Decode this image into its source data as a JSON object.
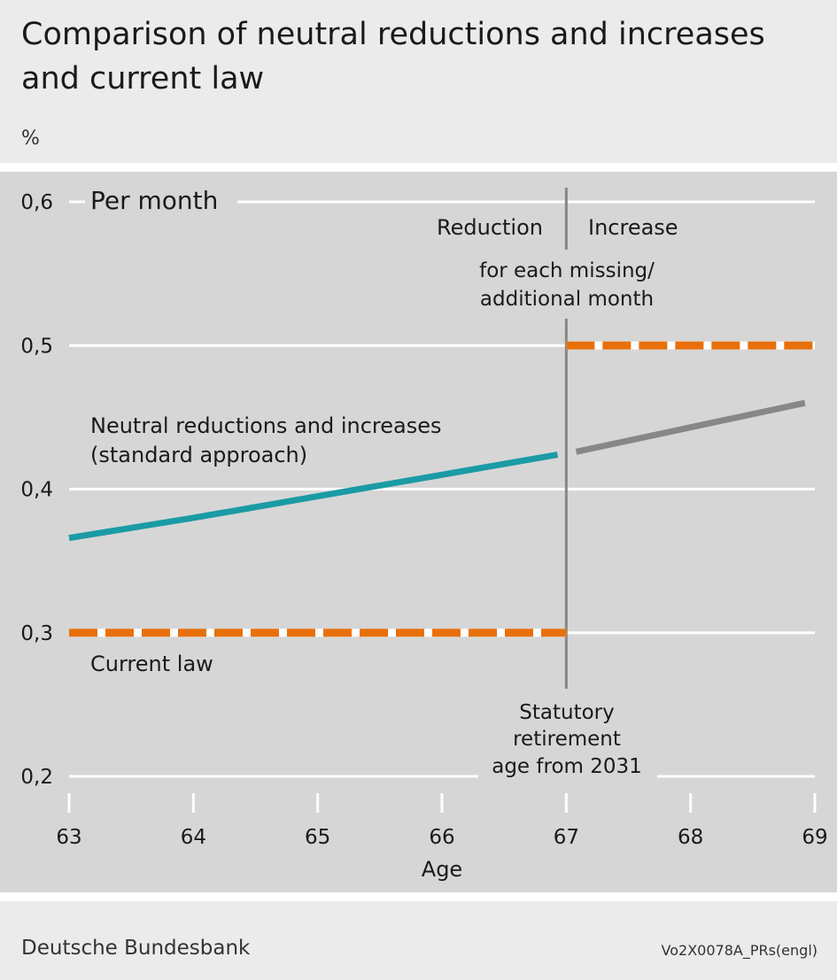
{
  "header": {
    "title": "Comparison of neutral reductions and increases and current law",
    "unit": "%"
  },
  "footer": {
    "source": "Deutsche Bundesbank",
    "code": "Vo2X0078A_PRs(engl)"
  },
  "colors": {
    "neutral_before": "#1a9ba6",
    "neutral_after": "#878787",
    "current_law": "#e8700c",
    "plot_bg": "#d6d6d6",
    "divider": "#878787"
  },
  "chart_data": {
    "type": "line",
    "x_ticks": [
      63,
      64,
      65,
      66,
      67,
      68,
      69
    ],
    "y_ticks": [
      0.2,
      0.3,
      0.4,
      0.5,
      0.6
    ],
    "y_tick_labels": [
      "0,2",
      "0,3",
      "0,4",
      "0,5",
      "0,6"
    ],
    "xlim": [
      63,
      69
    ],
    "ylim": [
      0.2,
      0.6
    ],
    "xlabel": "Age",
    "grid": true,
    "divider_x": 67,
    "series": [
      {
        "name": "Neutral reductions and increases (standard approach)",
        "style": "solid",
        "color_key": "neutral_before",
        "x": [
          63,
          64,
          65,
          66,
          66.93
        ],
        "y": [
          0.366,
          0.38,
          0.395,
          0.41,
          0.424
        ]
      },
      {
        "style": "solid",
        "color_key": "neutral_after",
        "x": [
          67.08,
          68,
          68.92
        ],
        "y": [
          0.426,
          0.443,
          0.46
        ]
      },
      {
        "name": "Current law",
        "style": "dashed",
        "color_key": "current_law",
        "x": [
          63,
          67
        ],
        "y": [
          0.3,
          0.3
        ]
      },
      {
        "style": "dashed",
        "color_key": "current_law",
        "x": [
          67,
          69
        ],
        "y": [
          0.5,
          0.5
        ]
      }
    ],
    "annotations": {
      "per_month": "Per month",
      "reduction": "Reduction",
      "increase": "Increase",
      "note_line1": "for each missing/",
      "note_line2": "additional month",
      "neutral_line1": "Neutral reductions and increases",
      "neutral_line2": "(standard approach)",
      "current_law": "Current law",
      "statutory_line1": "Statutory",
      "statutory_line2": "retirement",
      "statutory_line3": "age from 2031"
    }
  }
}
